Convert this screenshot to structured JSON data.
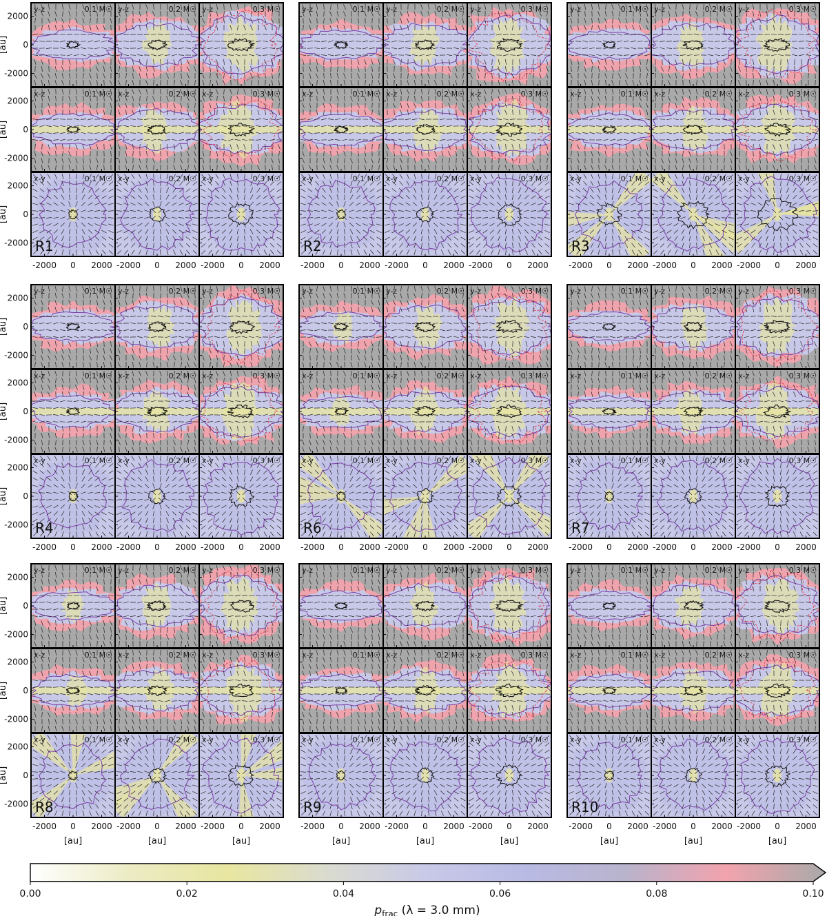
{
  "colors": {
    "cmap": [
      "#ffffff",
      "#ecebc4",
      "#e8e6a0",
      "#dadbd0",
      "#c8c9e8",
      "#b9bae4",
      "#b9b3cc",
      "#f2a3ad",
      "#a9a9a9"
    ],
    "outer_contour": "#7b3fa8",
    "inner_contour": "#111111",
    "red_contour": "#e0304a",
    "pseudo_vector": "#222222"
  },
  "figure": {
    "runs": [
      "R1",
      "R2",
      "R3",
      "R4",
      "R6",
      "R7",
      "R8",
      "R9",
      "R10"
    ],
    "projections": [
      "y-z",
      "x-z",
      "x-y"
    ],
    "mass_labels": [
      "0.1 M☉",
      "0.2 M☉",
      "0.3 M☉"
    ],
    "y_axis_label": "[au]",
    "x_axis_label": "[au]",
    "ticks": [
      "-2000",
      "0",
      "2000"
    ]
  },
  "colorbar": {
    "label": "p",
    "label_sub": "frac",
    "label_rest": " (λ = 3.0 mm)",
    "ticks": [
      "0.00",
      "0.02",
      "0.04",
      "0.06",
      "0.08",
      "0.10"
    ],
    "range": [
      0.0,
      0.1
    ],
    "extend": "max"
  }
}
